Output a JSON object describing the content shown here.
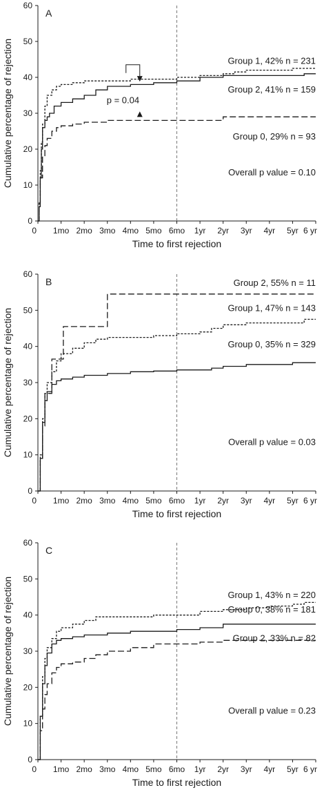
{
  "chart_data": [
    {
      "type": "line",
      "panel": "A",
      "xlabel": "Time to first rejection",
      "ylabel": "Cumulative percentage of rejection",
      "ylim": [
        0,
        60
      ],
      "yticks": [
        "0",
        "10",
        "20",
        "30",
        "40",
        "50",
        "60"
      ],
      "xticks": [
        "0",
        "1mo",
        "2mo",
        "3mo",
        "4mo",
        "5mo",
        "6mo",
        "1yr",
        "2yr",
        "3yr",
        "4yr",
        "5yr",
        "6 yr"
      ],
      "vline_at": "6mo",
      "annotations": [
        "Overall p value = 0.10",
        "p = 0.04"
      ],
      "series": [
        {
          "name": "Group 1, 42% n = 231",
          "style": "short-dash",
          "x": [
            0,
            0.05,
            0.1,
            0.15,
            0.2,
            0.3,
            0.4,
            0.6,
            0.8,
            1.0,
            1.5,
            2.0,
            3.0,
            4.0,
            5.0,
            6.0,
            7.0,
            8.0,
            8.5,
            9.0,
            10.0,
            11.0,
            12.0
          ],
          "y": [
            0,
            5,
            14,
            22,
            27,
            32,
            35,
            36.5,
            37.5,
            38,
            38.5,
            39,
            39,
            39.5,
            39.5,
            40,
            40.5,
            41,
            41.5,
            42,
            42,
            42.5,
            42.5
          ]
        },
        {
          "name": "Group 2, 41% n = 159",
          "style": "solid",
          "x": [
            0,
            0.05,
            0.1,
            0.15,
            0.2,
            0.3,
            0.4,
            0.5,
            0.7,
            1.0,
            1.5,
            2.0,
            2.5,
            3.0,
            4.0,
            5.0,
            6.0,
            7.0,
            8.0,
            9.0,
            10.0,
            11.0,
            11.5,
            12.0
          ],
          "y": [
            0,
            4,
            12,
            20,
            26,
            28,
            29,
            30,
            32,
            33,
            34,
            35,
            36.5,
            37.5,
            38,
            38.5,
            39,
            40,
            40.5,
            40.5,
            40.5,
            40.5,
            41,
            41
          ]
        },
        {
          "name": "Group 0, 29% n = 93",
          "style": "long-dash",
          "x": [
            0,
            0.05,
            0.1,
            0.2,
            0.3,
            0.4,
            0.6,
            0.8,
            1.0,
            1.5,
            2.0,
            3.0,
            4.0,
            5.0,
            6.0,
            7.0,
            7.8,
            8.0,
            9.0,
            10.0,
            11.0,
            12.0
          ],
          "y": [
            0,
            5,
            12,
            18,
            21,
            23,
            25,
            26,
            26.5,
            27,
            27.5,
            28,
            28,
            28,
            28,
            28,
            28,
            29,
            29,
            29,
            29,
            29
          ]
        }
      ]
    },
    {
      "type": "line",
      "panel": "B",
      "xlabel": "Time to first rejection",
      "ylabel": "Cumulative percentage of rejection",
      "ylim": [
        0,
        60
      ],
      "yticks": [
        "0",
        "10",
        "20",
        "30",
        "40",
        "50",
        "60"
      ],
      "xticks": [
        "0",
        "1mo",
        "2mo",
        "3mo",
        "4mo",
        "5mo",
        "6mo",
        "1yr",
        "2yr",
        "3yr",
        "4yr",
        "5yr",
        "6 yr"
      ],
      "vline_at": "6mo",
      "annotations": [
        "Overall p value = 0.03"
      ],
      "series": [
        {
          "name": "Group 2, 55% n = 11",
          "style": "long-dash",
          "x": [
            0,
            0.1,
            0.2,
            0.3,
            0.6,
            1.0,
            1.1,
            2.0,
            2.9,
            3.0,
            12.0
          ],
          "y": [
            0,
            9,
            18,
            27,
            36.5,
            36.5,
            45.5,
            45.5,
            45.5,
            54.5,
            54.5
          ]
        },
        {
          "name": "Group 1, 47% n = 143",
          "style": "short-dash",
          "x": [
            0,
            0.1,
            0.2,
            0.3,
            0.4,
            0.6,
            0.8,
            1.0,
            1.5,
            2.0,
            2.5,
            3.0,
            4.0,
            5.0,
            6.0,
            7.0,
            7.5,
            8.0,
            9.0,
            10.0,
            11.0,
            11.5,
            12.0
          ],
          "y": [
            0,
            10,
            20,
            27,
            30,
            33,
            36,
            38,
            39.5,
            41,
            42,
            42.5,
            42.5,
            43,
            43.5,
            44,
            45,
            46,
            46.5,
            46.5,
            46.5,
            47.5,
            47.5
          ]
        },
        {
          "name": "Group 0, 35% n = 329",
          "style": "solid",
          "x": [
            0,
            0.1,
            0.2,
            0.3,
            0.4,
            0.6,
            0.8,
            1.0,
            1.5,
            2.0,
            3.0,
            4.0,
            5.0,
            6.0,
            7.0,
            7.5,
            8.0,
            9.0,
            10.0,
            11.0,
            12.0
          ],
          "y": [
            0,
            9,
            19,
            25,
            27.5,
            29.5,
            30.5,
            31,
            31.5,
            32,
            32.5,
            33,
            33.2,
            33.5,
            33.5,
            34,
            34.5,
            35,
            35,
            35.5,
            35.5
          ]
        }
      ]
    },
    {
      "type": "line",
      "panel": "C",
      "xlabel": "Time to first rejection",
      "ylabel": "Cumulative percentage of rejection",
      "ylim": [
        0,
        60
      ],
      "yticks": [
        "0",
        "10",
        "20",
        "30",
        "40",
        "50",
        "60"
      ],
      "xticks": [
        "0",
        "1mo",
        "2mo",
        "3mo",
        "4mo",
        "5mo",
        "6mo",
        "1yr",
        "2yr",
        "3yr",
        "4yr",
        "5yr",
        "6 yr"
      ],
      "vline_at": "6mo",
      "annotations": [
        "Overall p value = 0.23"
      ],
      "series": [
        {
          "name": "Group 1, 43% n = 220",
          "style": "short-dash",
          "x": [
            0,
            0.1,
            0.2,
            0.3,
            0.4,
            0.6,
            0.8,
            1.0,
            1.5,
            2.0,
            2.5,
            3.0,
            4.0,
            5.0,
            6.0,
            7.0,
            8.0,
            9.0,
            10.0,
            11.0,
            11.5,
            12.0
          ],
          "y": [
            0,
            12,
            23,
            28,
            31,
            33.5,
            35.5,
            36.5,
            37.5,
            38.5,
            39.5,
            39.5,
            39.5,
            40,
            40,
            41,
            41.5,
            42,
            42.5,
            43,
            43.5,
            43.5
          ]
        },
        {
          "name": "Group 0, 38% n = 181",
          "style": "solid",
          "x": [
            0,
            0.1,
            0.2,
            0.3,
            0.4,
            0.6,
            0.8,
            1.0,
            1.5,
            2.0,
            3.0,
            4.0,
            5.0,
            6.0,
            7.0,
            8.0,
            9.0,
            10.0,
            11.0,
            12.0
          ],
          "y": [
            0,
            12,
            21,
            26,
            29.5,
            32,
            33,
            33.5,
            34,
            34.5,
            35,
            35.5,
            35.5,
            36,
            36.5,
            37.5,
            37.5,
            37.5,
            37.5,
            37.5
          ]
        },
        {
          "name": "Group 2, 33% n = 82",
          "style": "long-dash",
          "x": [
            0,
            0.1,
            0.2,
            0.3,
            0.4,
            0.6,
            0.8,
            1.0,
            1.5,
            2.0,
            2.5,
            3.0,
            4.0,
            5.0,
            6.0,
            7.0,
            8.0,
            9.0,
            10.0,
            11.0,
            12.0
          ],
          "y": [
            0,
            8,
            14,
            18,
            21,
            24,
            25.5,
            26.5,
            27,
            28,
            29,
            30,
            31,
            32,
            32,
            32.5,
            33,
            33,
            33,
            33,
            33
          ]
        }
      ]
    }
  ]
}
